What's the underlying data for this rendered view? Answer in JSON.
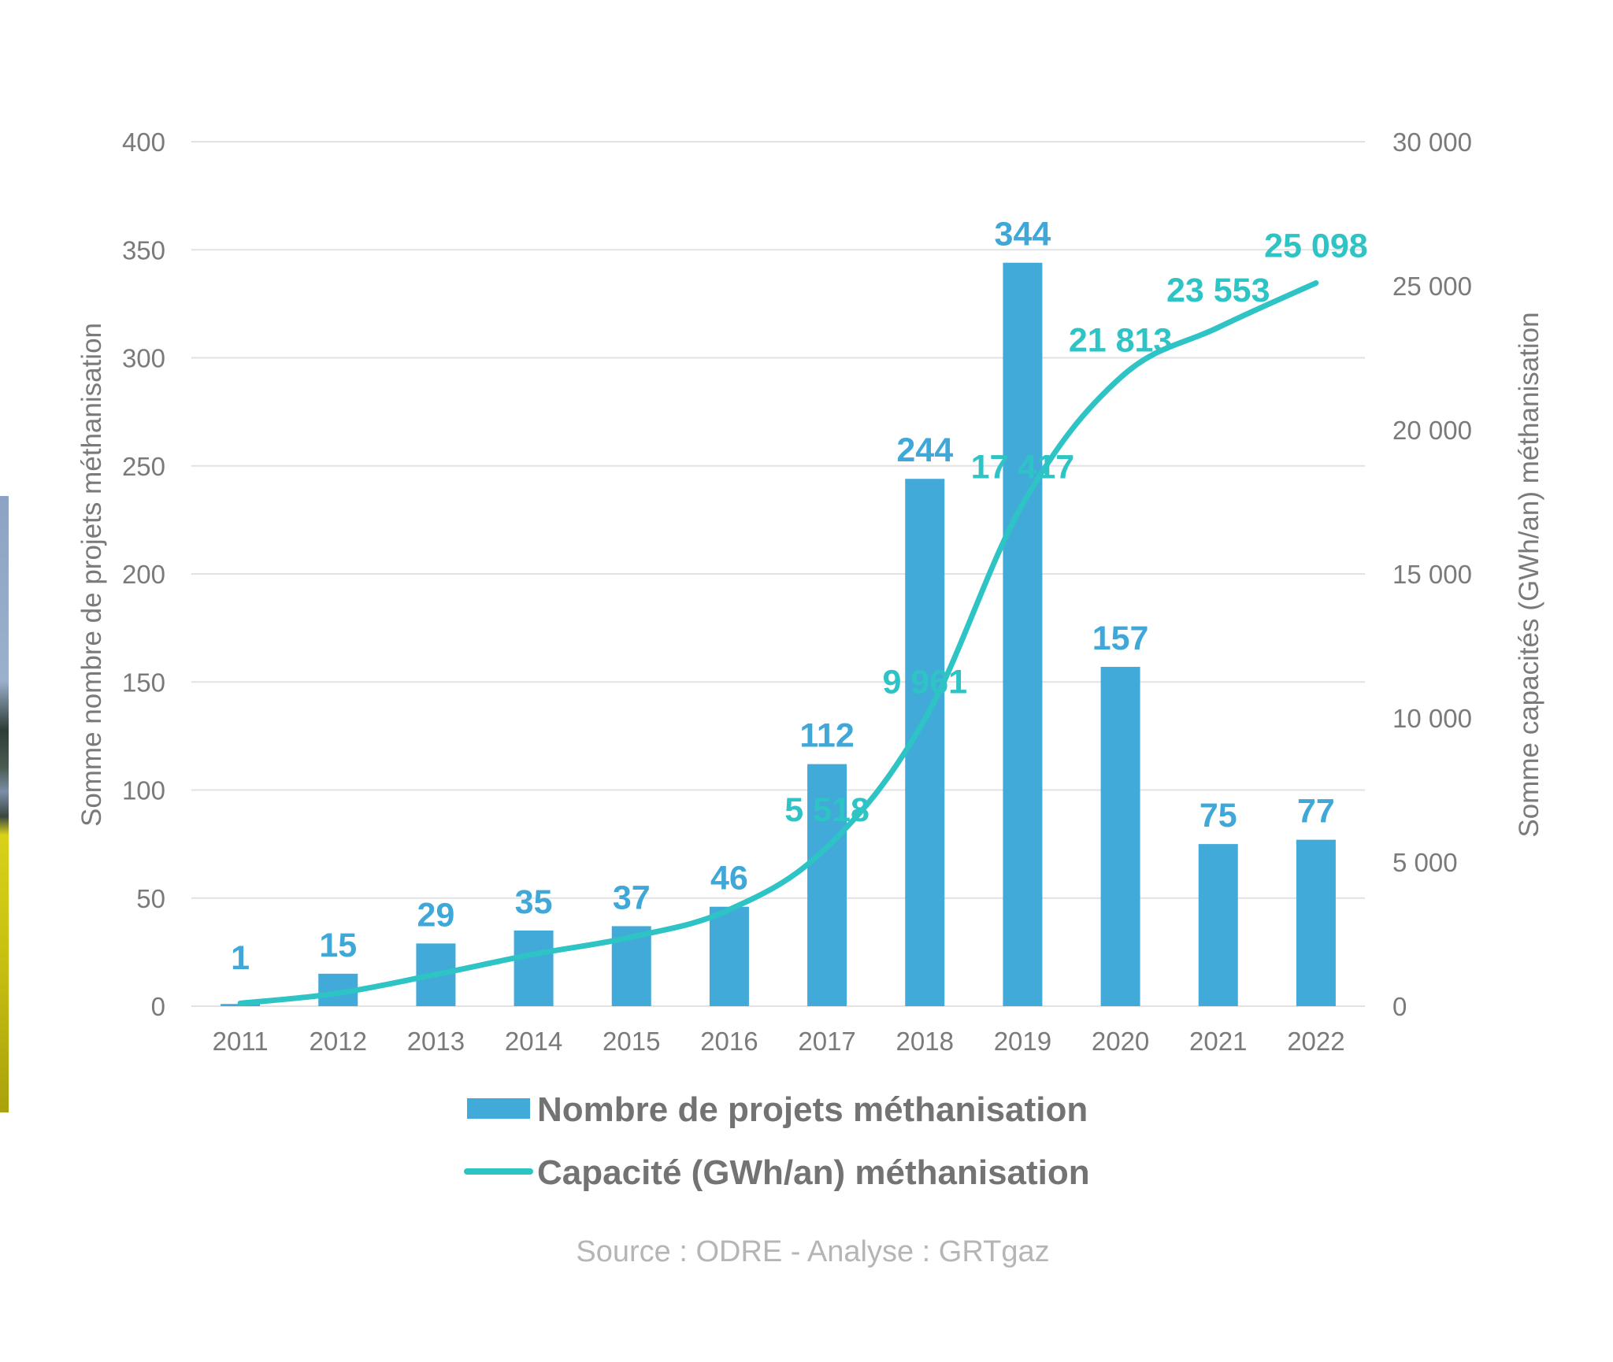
{
  "chart_data": {
    "type": "bar",
    "title": "",
    "categories": [
      "2011",
      "2012",
      "2013",
      "2014",
      "2015",
      "2016",
      "2017",
      "2018",
      "2019",
      "2020",
      "2021",
      "2022"
    ],
    "series": [
      {
        "name": "Nombre de projets méthanisation",
        "type": "bar",
        "axis": "left",
        "color": "#41aad9",
        "values": [
          1,
          15,
          29,
          35,
          37,
          46,
          112,
          244,
          344,
          157,
          75,
          77
        ],
        "labels": [
          "1",
          "15",
          "29",
          "35",
          "37",
          "46",
          "112",
          "244",
          "344",
          "157",
          "75",
          "77"
        ]
      },
      {
        "name": "Capacité (GWh/an) méthanisation",
        "type": "line",
        "axis": "right",
        "color": "#2ec3c4",
        "values": [
          100,
          450,
          1100,
          1800,
          2400,
          3350,
          5518,
          9961,
          17417,
          21813,
          23553,
          25098
        ],
        "labels": [
          "",
          "",
          "",
          "",
          "",
          "",
          "5 518",
          "9 961",
          "17 417",
          "21 813",
          "23 553",
          "25 098"
        ]
      }
    ],
    "y_left": {
      "label": "Somme nombre de projets méthanisation",
      "range": [
        0,
        400
      ],
      "ticks": [
        0,
        50,
        100,
        150,
        200,
        250,
        300,
        350,
        400
      ],
      "tick_labels": [
        "0",
        "50",
        "100",
        "150",
        "200",
        "250",
        "300",
        "350",
        "400"
      ]
    },
    "y_right": {
      "label": "Somme capacités (GWh/an) méthanisation",
      "range": [
        0,
        30000
      ],
      "ticks": [
        0,
        5000,
        10000,
        15000,
        20000,
        25000,
        30000
      ],
      "tick_labels": [
        "0",
        "5 000",
        "10 000",
        "15 000",
        "20 000",
        "25 000",
        "30 000"
      ]
    },
    "xlabel": "",
    "grid": true,
    "legend": {
      "placement": "bottom",
      "items": [
        "Nombre de projets méthanisation",
        "Capacité (GWh/an) méthanisation"
      ]
    },
    "source": "Source : ODRE - Analyse : GRTgaz"
  }
}
